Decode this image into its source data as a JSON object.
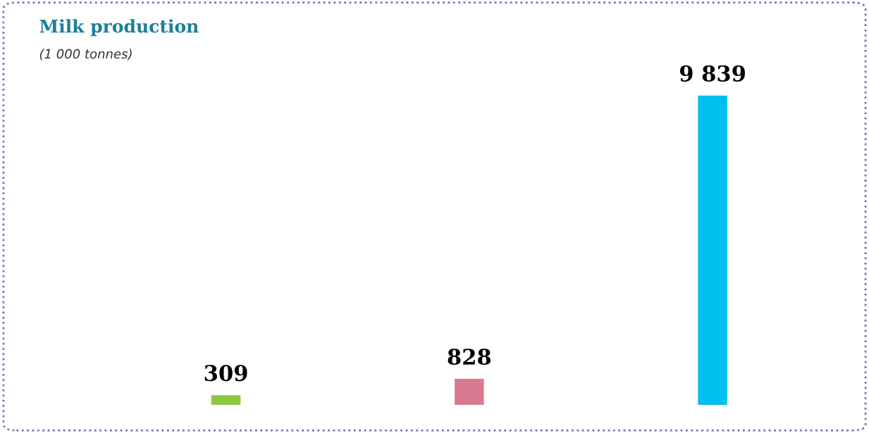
{
  "chart_data": {
    "type": "bar",
    "title": "Milk production",
    "subtitle": "(1 000 tonnes)",
    "categories": [
      null,
      null,
      null
    ],
    "values": [
      309,
      828,
      9839
    ],
    "colors": [
      "#8dc63f",
      "#d87a8e",
      "#00bfef"
    ],
    "value_labels": [
      "309",
      "828",
      "9 839"
    ],
    "grid": false,
    "legend": false
  }
}
